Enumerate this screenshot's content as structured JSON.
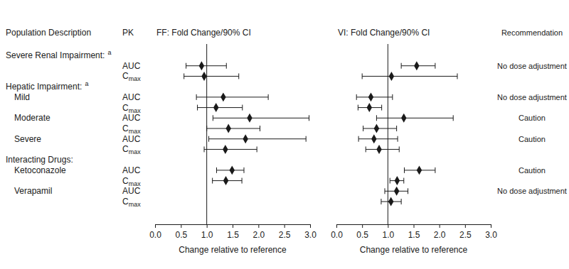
{
  "chart_data": {
    "type": "forest",
    "column_titles": {
      "population": "Population Description",
      "pk": "PK",
      "recommendation": "Recommendation"
    },
    "categories": [
      "Severe Renal Impairment:",
      null,
      null,
      "Hepatic Impairment:",
      "Mild",
      null,
      "Moderate",
      null,
      "Severe",
      null,
      "Interacting Drugs:",
      "Ketoconazole",
      null,
      "Verapamil",
      null
    ],
    "footnotes": [
      "a",
      null,
      null,
      "a",
      null,
      null,
      null,
      null,
      null,
      null,
      null,
      null,
      null,
      null,
      null
    ],
    "pk": [
      null,
      "AUC",
      "Cmax",
      null,
      "AUC",
      "Cmax",
      "AUC",
      "Cmax",
      "AUC",
      "Cmax",
      null,
      "AUC",
      "Cmax",
      "AUC",
      "Cmax"
    ],
    "recommendation": [
      null,
      "No dose adjustment",
      null,
      null,
      "No dose adjustment",
      null,
      "Caution",
      null,
      "Caution",
      null,
      null,
      "Caution",
      null,
      "No dose adjustment",
      null
    ],
    "panels": [
      {
        "title": "FF: Fold Change/90% CI",
        "values": [
          null,
          0.9,
          0.95,
          null,
          1.32,
          1.18,
          1.83,
          1.42,
          1.75,
          1.36,
          null,
          1.49,
          1.37,
          null,
          null
        ],
        "ci_low": [
          null,
          0.6,
          0.56,
          null,
          0.8,
          0.82,
          1.12,
          1.0,
          1.04,
          0.95,
          null,
          1.19,
          1.11,
          null,
          null
        ],
        "ci_high": [
          null,
          1.38,
          1.62,
          null,
          2.19,
          1.69,
          2.98,
          2.03,
          2.92,
          1.97,
          null,
          1.72,
          1.68,
          null,
          null
        ]
      },
      {
        "title": "VI: Fold Change/90% CI",
        "values": [
          null,
          1.56,
          1.07,
          null,
          0.67,
          0.64,
          1.31,
          0.78,
          0.73,
          0.83,
          null,
          1.61,
          1.18,
          1.17,
          1.06
        ],
        "ci_low": [
          null,
          1.26,
          0.5,
          null,
          0.39,
          0.42,
          0.78,
          0.52,
          0.43,
          0.57,
          null,
          1.32,
          1.04,
          0.94,
          0.87
        ],
        "ci_high": [
          null,
          1.92,
          2.35,
          null,
          1.09,
          0.88,
          2.27,
          1.17,
          1.19,
          1.22,
          null,
          1.92,
          1.31,
          1.39,
          1.26
        ]
      }
    ],
    "reference_line": 1,
    "xlim": [
      0,
      3
    ],
    "xticks": [
      {
        "value": 0,
        "label": "0.0"
      },
      0.5,
      {
        "value": 1,
        "label": "1.0"
      },
      1.5,
      {
        "value": 2,
        "label": "2.0"
      },
      2.5,
      {
        "value": 3,
        "label": "3.0"
      }
    ],
    "x_label": "Change relative to reference",
    "marker": "diamond",
    "color": "#1a1a1a"
  }
}
